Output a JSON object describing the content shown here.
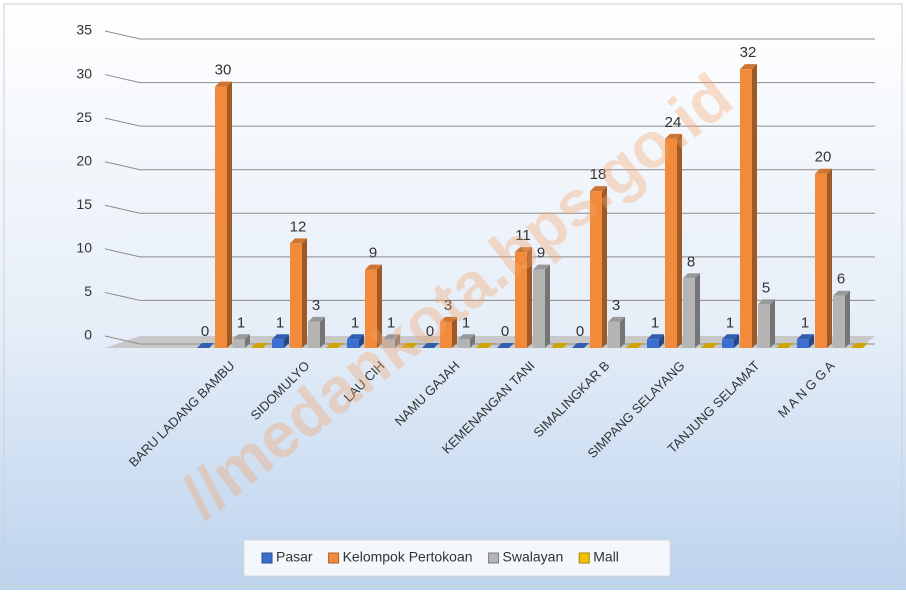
{
  "chart_data": {
    "type": "bar3d",
    "categories": [
      "BARU LADANG BAMBU",
      "SIDOMULYO",
      "LAU CIH",
      "NAMU GAJAH",
      "KEMENANGAN TANI",
      "SIMALINGKAR B",
      "SIMPANG SELAYANG",
      "TANJUNG SELAMAT",
      "M A N G G A"
    ],
    "series": [
      {
        "name": "Pasar",
        "color": "#3a6fd0",
        "values": [
          0,
          1,
          1,
          0,
          0,
          0,
          1,
          1,
          1
        ],
        "labels": true
      },
      {
        "name": "Kelompok Pertokoan",
        "color": "#f28a3c",
        "values": [
          30,
          12,
          9,
          3,
          11,
          18,
          24,
          32,
          20
        ],
        "labels": true
      },
      {
        "name": "Swalayan",
        "color": "#b4b4b4",
        "values": [
          1,
          3,
          1,
          1,
          9,
          3,
          8,
          5,
          6
        ],
        "labels": true
      },
      {
        "name": "Mall",
        "color": "#f2c200",
        "values": [
          0,
          0,
          0,
          0,
          0,
          0,
          0,
          0,
          0
        ],
        "labels": false
      }
    ],
    "ylim": [
      0,
      35
    ],
    "yticks": [
      0,
      5,
      10,
      15,
      20,
      25,
      30,
      35
    ],
    "grid": true,
    "legend": "bottom",
    "watermark": "//medankota.bps.go.id"
  }
}
